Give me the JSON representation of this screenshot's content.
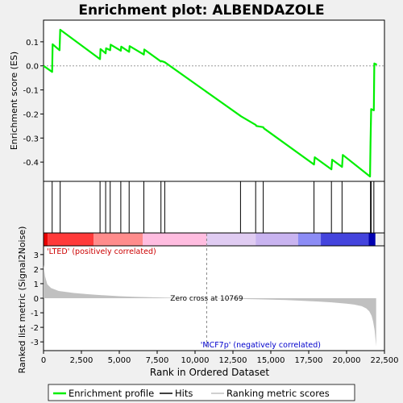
{
  "chart_data": {
    "type": "line",
    "title": "Enrichment plot: ALBENDAZOLE",
    "xlabel": "Rank in Ordered Dataset",
    "xlim": [
      0,
      22500
    ],
    "x_ticks": [
      0,
      2500,
      5000,
      7500,
      10000,
      12500,
      15000,
      17500,
      20000,
      22500
    ],
    "x_tick_labels": [
      "0",
      "2,500",
      "5,000",
      "7,500",
      "10,000",
      "12,500",
      "15,000",
      "17,500",
      "20,000",
      "22,500"
    ],
    "es_panel": {
      "ylabel": "Enrichment score (ES)",
      "ylim": [
        -0.48,
        0.19
      ],
      "y_ticks": [
        0.1,
        0.0,
        -0.1,
        -0.2,
        -0.3,
        -0.4
      ],
      "y_tick_labels": [
        "0.1",
        "0.0",
        "-0.1",
        "-0.2",
        "-0.3",
        "-0.4"
      ],
      "series": [
        {
          "name": "Enrichment profile",
          "color": "#00ee00",
          "x": [
            0,
            570,
            600,
            1060,
            1100,
            3730,
            3760,
            4100,
            4130,
            4400,
            4430,
            5100,
            5130,
            5650,
            5680,
            6620,
            6650,
            7750,
            7780,
            8000,
            13000,
            13050,
            14000,
            14050,
            14500,
            14550,
            17850,
            17900,
            19000,
            19050,
            19700,
            19750,
            21550,
            21580,
            21620,
            21800,
            21830,
            22000
          ],
          "y": [
            0.0,
            -0.025,
            0.09,
            0.065,
            0.15,
            0.028,
            0.07,
            0.052,
            0.073,
            0.065,
            0.088,
            0.063,
            0.08,
            0.058,
            0.082,
            0.047,
            0.068,
            0.018,
            0.02,
            0.015,
            -0.208,
            -0.21,
            -0.245,
            -0.25,
            -0.255,
            -0.26,
            -0.41,
            -0.38,
            -0.43,
            -0.39,
            -0.42,
            -0.37,
            -0.46,
            -0.32,
            -0.18,
            -0.185,
            0.01,
            0.005
          ]
        }
      ]
    },
    "hits": [
      570,
      1100,
      3730,
      4100,
      4400,
      5100,
      5650,
      6620,
      7750,
      8000,
      13000,
      14000,
      14500,
      17850,
      19000,
      19700,
      21580,
      21620,
      21800
    ],
    "rank_metric_panel": {
      "ylabel": "Ranked list metric (Signal2Noise)",
      "ylim": [
        -3.6,
        3.6
      ],
      "y_ticks": [
        3,
        2,
        1,
        0,
        -1,
        -2,
        -3
      ],
      "y_tick_labels": [
        "3",
        "2",
        "1",
        "0",
        "-1",
        "-2",
        "-3"
      ],
      "zero_cross": 10769,
      "zero_cross_label": "Zero cross at 10769",
      "positive_label": "'LTED' (positively correlated)",
      "negative_label": "'MCF7p' (negatively correlated)",
      "profile": {
        "x": [
          0,
          100,
          250,
          500,
          1000,
          2000,
          3000,
          4000,
          5000,
          6000,
          7000,
          8000,
          9000,
          10000,
          10769,
          12000,
          13000,
          14000,
          15000,
          16000,
          17000,
          18000,
          19000,
          20000,
          20500,
          21000,
          21300,
          21500,
          21650,
          21750,
          21850,
          21950
        ],
        "y": [
          2.3,
          1.5,
          0.95,
          0.7,
          0.5,
          0.36,
          0.27,
          0.2,
          0.14,
          0.1,
          0.07,
          0.04,
          0.02,
          0.01,
          0.0,
          -0.03,
          -0.05,
          -0.07,
          -0.1,
          -0.13,
          -0.17,
          -0.22,
          -0.28,
          -0.37,
          -0.44,
          -0.55,
          -0.7,
          -0.9,
          -1.2,
          -1.6,
          -2.2,
          -3.3
        ]
      },
      "fill_color": "#c0c0c0"
    },
    "color_bar": {
      "segments": [
        {
          "x0": 0,
          "x1": 280,
          "color": "#e80000"
        },
        {
          "x0": 280,
          "x1": 3300,
          "color": "#ff3a3a"
        },
        {
          "x0": 3300,
          "x1": 6550,
          "color": "#ff8c8c"
        },
        {
          "x0": 6550,
          "x1": 10769,
          "color": "#ffbde0"
        },
        {
          "x0": 10769,
          "x1": 14000,
          "color": "#e0ccf2"
        },
        {
          "x0": 14000,
          "x1": 16800,
          "color": "#c9b4f0"
        },
        {
          "x0": 16800,
          "x1": 18300,
          "color": "#8c8cf5"
        },
        {
          "x0": 18300,
          "x1": 21450,
          "color": "#4444dd"
        },
        {
          "x0": 21450,
          "x1": 21900,
          "color": "#0000b0"
        }
      ]
    },
    "legend": {
      "placement": "bottom",
      "items": [
        {
          "label": "Enrichment profile",
          "color": "#00ee00"
        },
        {
          "label": "Hits",
          "color": "#000000"
        },
        {
          "label": "Ranking metric scores",
          "color": "#c0c0c0"
        }
      ]
    }
  }
}
